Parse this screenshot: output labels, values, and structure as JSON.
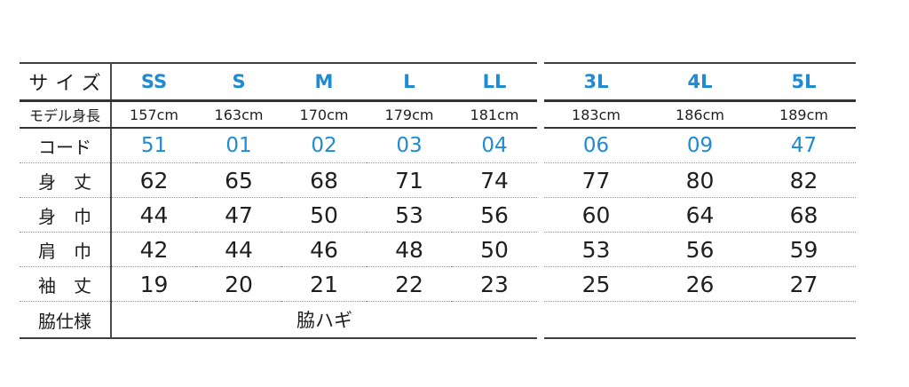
{
  "colors": {
    "accent_blue": "#1E8BD2",
    "text_dark": "#1F1F1F",
    "rule_solid": "#3E3E3E",
    "rule_dotted": "#999999"
  },
  "size_chart": {
    "row_labels": {
      "size": "サイズ",
      "model_height": "モデル身長",
      "code": "コード",
      "body_length": "身　丈",
      "body_width": "身　巾",
      "shoulder_width": "肩　巾",
      "sleeve_length": "袖　丈",
      "side_spec": "脇仕様"
    },
    "standard": {
      "sizes": [
        "SS",
        "S",
        "M",
        "L",
        "LL"
      ],
      "model_heights": [
        "157cm",
        "163cm",
        "170cm",
        "179cm",
        "181cm"
      ],
      "codes": [
        "51",
        "01",
        "02",
        "03",
        "04"
      ],
      "body_length": [
        "62",
        "65",
        "68",
        "71",
        "74"
      ],
      "body_width": [
        "44",
        "47",
        "50",
        "53",
        "56"
      ],
      "shoulder_width": [
        "42",
        "44",
        "46",
        "48",
        "50"
      ],
      "sleeve_length": [
        "19",
        "20",
        "21",
        "22",
        "23"
      ],
      "side_spec": "脇ハギ"
    },
    "large": {
      "sizes": [
        "3L",
        "4L",
        "5L"
      ],
      "model_heights": [
        "183cm",
        "186cm",
        "189cm"
      ],
      "codes": [
        "06",
        "09",
        "47"
      ],
      "body_length": [
        "77",
        "80",
        "82"
      ],
      "body_width": [
        "60",
        "64",
        "68"
      ],
      "shoulder_width": [
        "53",
        "56",
        "59"
      ],
      "sleeve_length": [
        "25",
        "26",
        "27"
      ]
    }
  }
}
